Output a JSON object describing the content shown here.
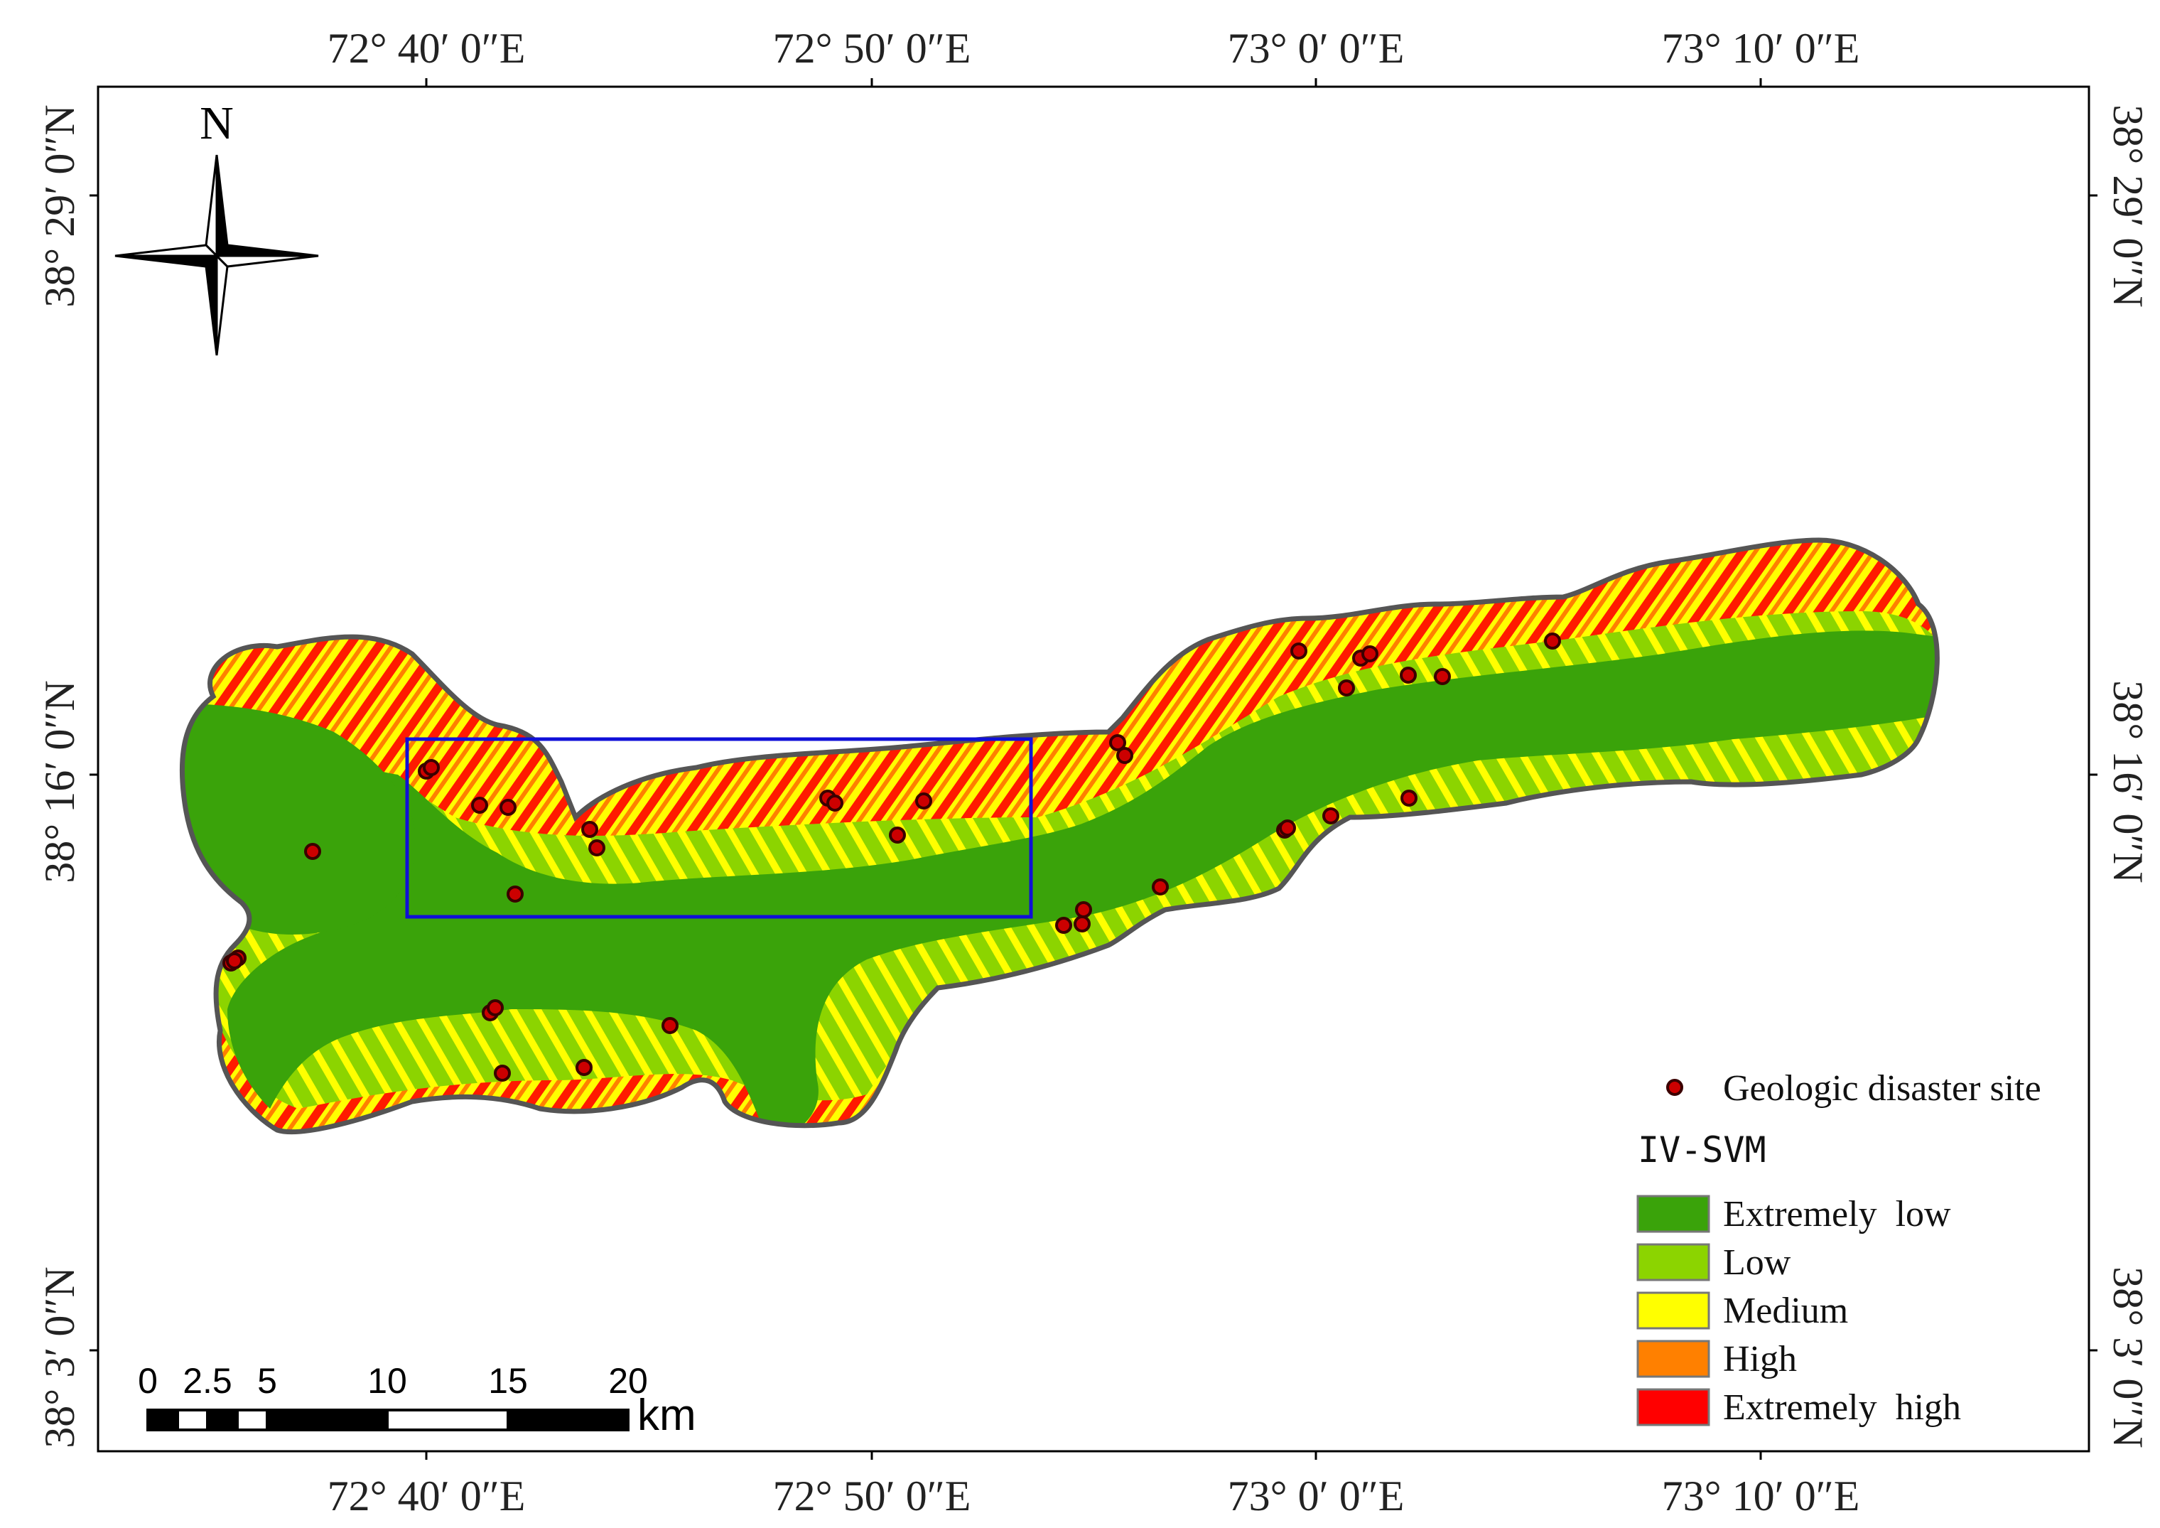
{
  "map": {
    "coordinates": {
      "top": [
        "72° 40′ 0″E",
        "72° 50′ 0″E",
        "73° 0′ 0″E",
        "73° 10′ 0″E"
      ],
      "bottom": [
        "72° 40′ 0″E",
        "72° 50′ 0″E",
        "73° 0′ 0″E",
        "73° 10′ 0″E"
      ],
      "left": [
        "38° 29′ 0″N",
        "38° 16′ 0″N",
        "38° 3′ 0″N"
      ],
      "right": [
        "38° 29′ 0″N",
        "38° 16′ 0″N",
        "38° 3′ 0″N"
      ]
    },
    "north_arrow": {
      "label": "N"
    },
    "scale_bar": {
      "ticks": [
        "0",
        "2.5",
        "5",
        "10",
        "15",
        "20"
      ],
      "unit": "km"
    },
    "legend": {
      "site_label": "Geologic disaster site",
      "title": "IV-SVM",
      "classes": [
        {
          "label": "Extremely  low",
          "color": "#3aa30a"
        },
        {
          "label": "Low",
          "color": "#8cd400"
        },
        {
          "label": "Medium",
          "color": "#ffff00"
        },
        {
          "label": "High",
          "color": "#ff8000"
        },
        {
          "label": "Extremely  high",
          "color": "#ff0000"
        }
      ]
    },
    "colors": {
      "outline": "#555555",
      "study_box": "#1010d8",
      "site_fill": "#cc0000"
    }
  }
}
